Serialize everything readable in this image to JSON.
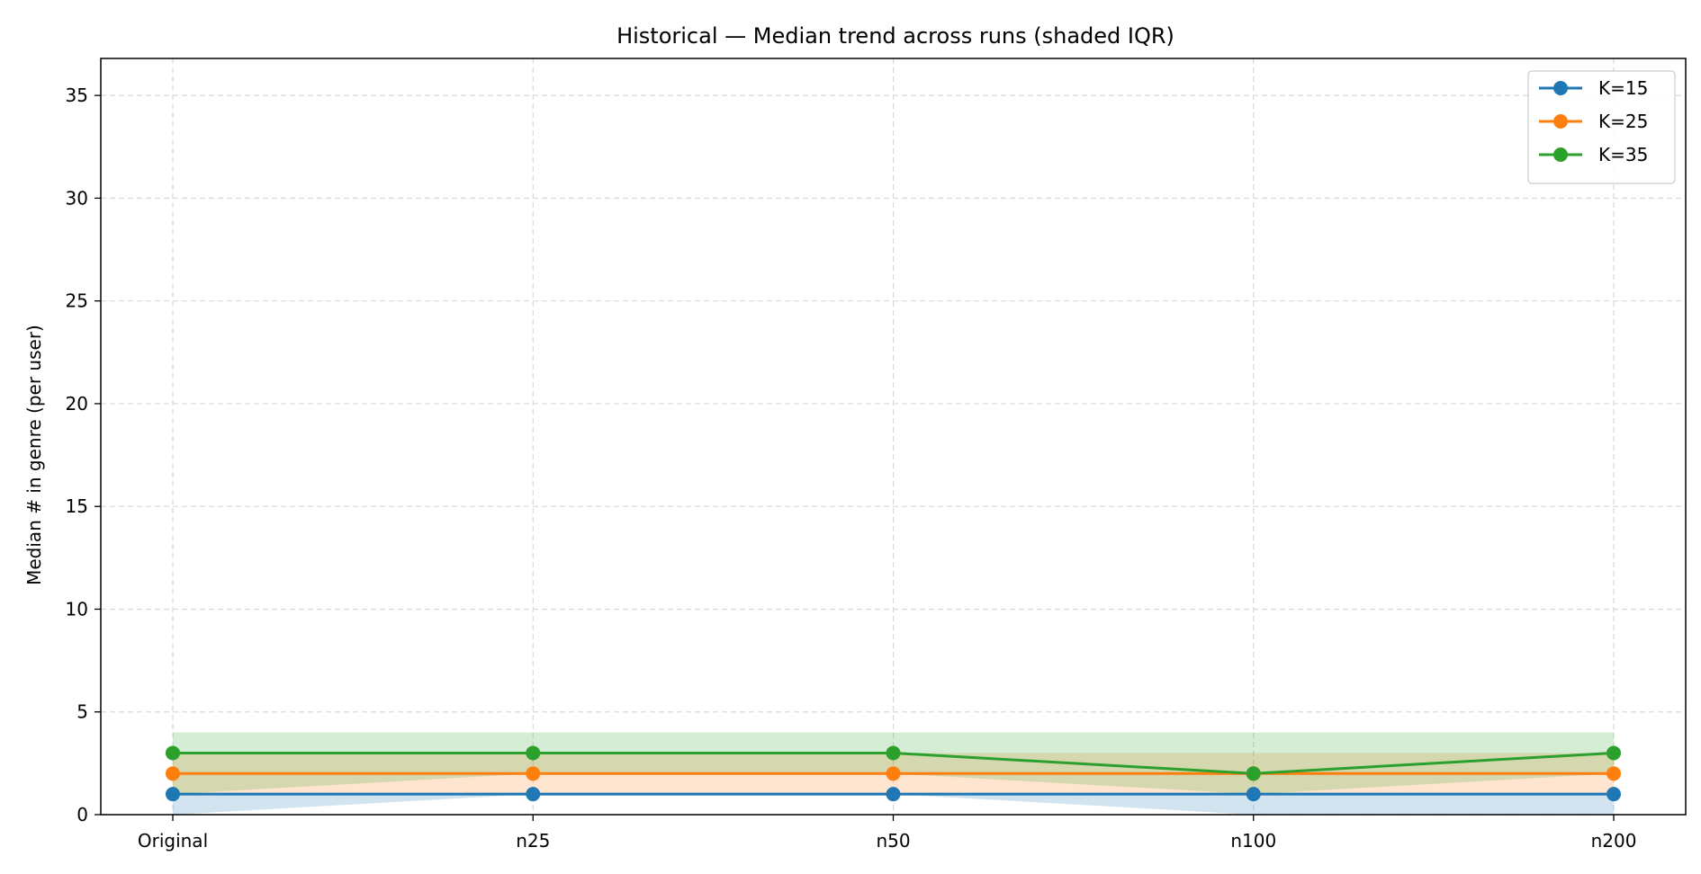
{
  "chart_data": {
    "type": "line",
    "title": "Historical — Median trend across runs (shaded IQR)",
    "xlabel": "",
    "ylabel": "Median # in genre (per user)",
    "categories": [
      "Original",
      "n25",
      "n50",
      "n100",
      "n200"
    ],
    "ylim": [
      0,
      36.8
    ],
    "yticks": [
      0,
      5,
      10,
      15,
      20,
      25,
      30,
      35
    ],
    "grid": true,
    "legend_position": "top-right",
    "series": [
      {
        "name": "K=15",
        "color": "#1f77b4",
        "values": [
          1,
          1,
          1,
          1,
          1
        ],
        "iqr_low": [
          0,
          1,
          1,
          0,
          0
        ],
        "iqr_high": [
          1,
          1,
          1,
          1,
          1
        ]
      },
      {
        "name": "K=25",
        "color": "#ff7f0e",
        "values": [
          2,
          2,
          2,
          2,
          2
        ],
        "iqr_low": [
          1,
          1,
          1,
          1,
          1
        ],
        "iqr_high": [
          3,
          3,
          3,
          3,
          3
        ]
      },
      {
        "name": "K=35",
        "color": "#2ca02c",
        "values": [
          3,
          3,
          3,
          2,
          3
        ],
        "iqr_low": [
          1,
          2,
          2,
          1,
          2
        ],
        "iqr_high": [
          4,
          4,
          4,
          4,
          4
        ]
      }
    ]
  }
}
